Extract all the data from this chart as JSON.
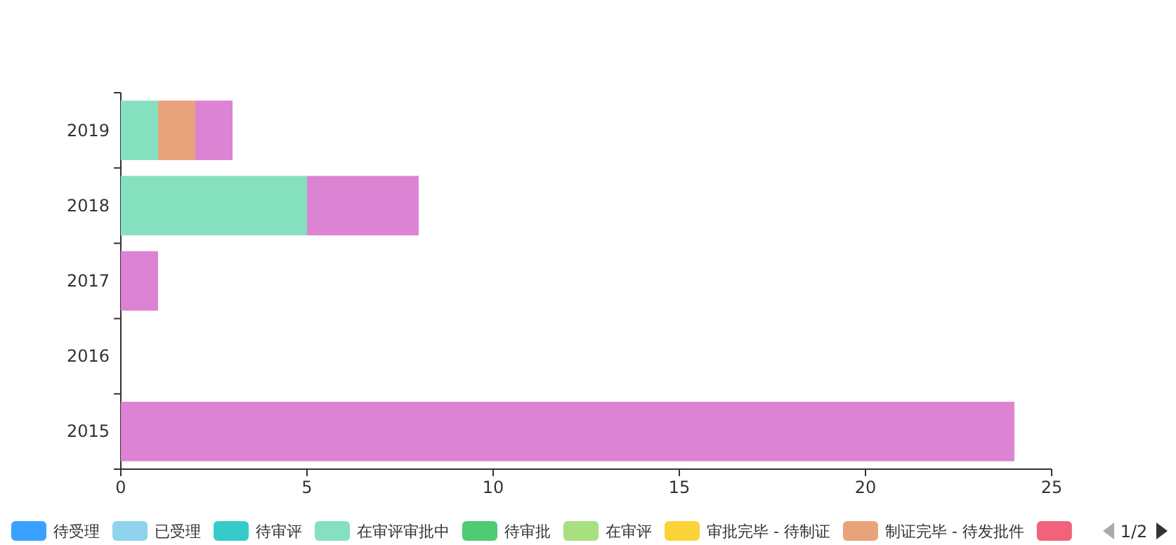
{
  "chart_data": {
    "type": "bar",
    "orientation": "horizontal",
    "stacked": true,
    "legend": "bottom",
    "categories": [
      "2019",
      "2018",
      "2017",
      "2016",
      "2015"
    ],
    "xlim": [
      0,
      25
    ],
    "xticks": [
      0,
      5,
      10,
      15,
      20,
      25
    ],
    "annotations": [
      "1/2"
    ],
    "series": [
      {
        "name": "待受理",
        "color": "#3ba1ff",
        "values": [
          null,
          null,
          null,
          null,
          null
        ]
      },
      {
        "name": "已受理",
        "color": "#8fd3ec",
        "values": [
          null,
          null,
          null,
          null,
          null
        ]
      },
      {
        "name": "待审评",
        "color": "#36cbcb",
        "values": [
          null,
          null,
          null,
          null,
          null
        ]
      },
      {
        "name": "在审评审批中",
        "color": "#84e0be",
        "values": [
          1,
          5,
          null,
          null,
          null
        ]
      },
      {
        "name": "待审批",
        "color": "#4ecb73",
        "values": [
          null,
          null,
          null,
          null,
          null
        ]
      },
      {
        "name": "在审评",
        "color": "#a7e07f",
        "values": [
          null,
          null,
          null,
          null,
          null
        ]
      },
      {
        "name": "审批完毕 - 待制证",
        "color": "#fad337",
        "values": [
          null,
          null,
          null,
          null,
          null
        ]
      },
      {
        "name": "制证完毕 - 待发批件",
        "color": "#e8a37a",
        "values": [
          1,
          null,
          null,
          null,
          null
        ]
      },
      {
        "color": "#f2637b",
        "values": [
          null,
          null,
          null,
          null,
          null
        ]
      },
      {
        "color": "#dd83d3",
        "values": [
          1,
          3,
          1,
          null,
          24
        ]
      }
    ]
  }
}
